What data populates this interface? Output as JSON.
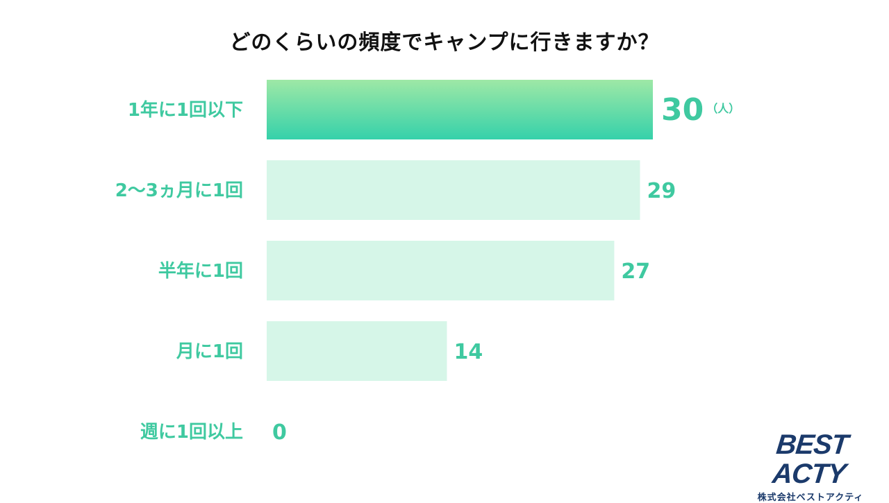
{
  "chart_data": {
    "type": "bar",
    "orientation": "horizontal",
    "title": "どのくらいの頻度でキャンプに行きますか？",
    "categories": [
      "1年に1回以下",
      "2〜3ヵ月に1回",
      "半年に1回",
      "月に1回",
      "週に1回以上"
    ],
    "values": [
      30,
      29,
      27,
      14,
      0
    ],
    "unit": "（人）",
    "xlim": [
      0,
      30
    ],
    "highlight_index": 0,
    "grid": false
  },
  "colors": {
    "label": "#3fc9a0",
    "bar_light": "#d6f6e8",
    "bar_top": "#9ee8a6",
    "bar_bottom": "#35d1aa"
  },
  "logo": {
    "main": "BEST ACTY",
    "sub": "株式会社ベストアクティ"
  }
}
